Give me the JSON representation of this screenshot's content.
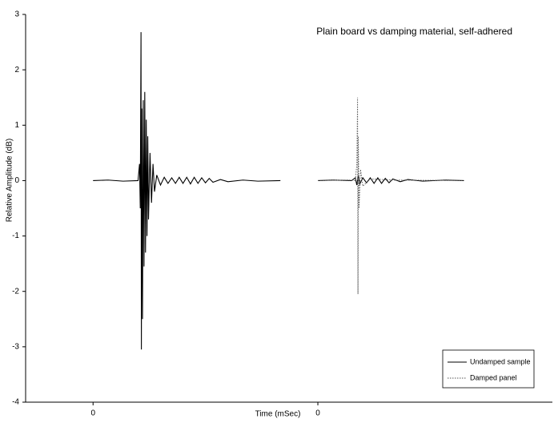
{
  "chart_data": {
    "type": "line",
    "title": "Plain board vs damping material, self-adhered",
    "x_label": "Time (mSec)",
    "y_label": "Relative Amplitude (dB)",
    "xlim": [
      -90,
      613
    ],
    "xticks": [
      0,
      {
        "value": 300,
        "label": "0"
      }
    ],
    "ylim": [
      -4,
      3
    ],
    "yticks": [
      -4,
      -3,
      -2,
      -1,
      0,
      1,
      2,
      3
    ],
    "grid": false,
    "legend": "lower-right",
    "series": [
      {
        "name": "Undamped sample",
        "color": "#000000",
        "line_style": "solid",
        "x": [
          0,
          20,
          40,
          60,
          62,
          63,
          64,
          64.5,
          65,
          66,
          67,
          68,
          69,
          70,
          71,
          72,
          73,
          74,
          76,
          78,
          80,
          82,
          85,
          90,
          95,
          100,
          105,
          110,
          115,
          120,
          125,
          130,
          135,
          140,
          145,
          150,
          155,
          160,
          170,
          180,
          200,
          220,
          250,
          275,
          300,
          320,
          345,
          350,
          352,
          354,
          356,
          360,
          365,
          370,
          375,
          380,
          385,
          390,
          395,
          400,
          410,
          420,
          440,
          470,
          495
        ],
        "values": [
          0,
          0.01,
          -0.01,
          0,
          0.3,
          -0.5,
          2.68,
          -3.05,
          1.3,
          -2.5,
          1.45,
          -1.55,
          1.6,
          -1.3,
          1.1,
          -1.0,
          0.8,
          -0.7,
          0.5,
          -0.4,
          0.3,
          -0.2,
          0.1,
          -0.08,
          0.06,
          -0.05,
          0.05,
          -0.05,
          0.06,
          -0.05,
          0.06,
          -0.06,
          0.06,
          -0.05,
          0.05,
          -0.04,
          0.04,
          -0.03,
          0.02,
          -0.02,
          0.01,
          -0.01,
          0,
          null,
          0,
          0.01,
          0,
          0.05,
          -0.08,
          0.1,
          -0.06,
          0.05,
          -0.04,
          0.05,
          -0.05,
          0.05,
          -0.05,
          0.04,
          -0.04,
          0.03,
          -0.02,
          0.02,
          -0.01,
          0.01,
          0
        ]
      },
      {
        "name": "Damped panel",
        "color": "#555555",
        "line_style": "dotted",
        "x": [
          300,
          340,
          350,
          352,
          353,
          353.5,
          354,
          355,
          357,
          360,
          370,
          400,
          495
        ],
        "values": [
          0,
          0.01,
          0,
          0.3,
          1.5,
          -2.05,
          0.8,
          -0.5,
          0.2,
          -0.1,
          0.03,
          0.01,
          0
        ]
      }
    ]
  }
}
